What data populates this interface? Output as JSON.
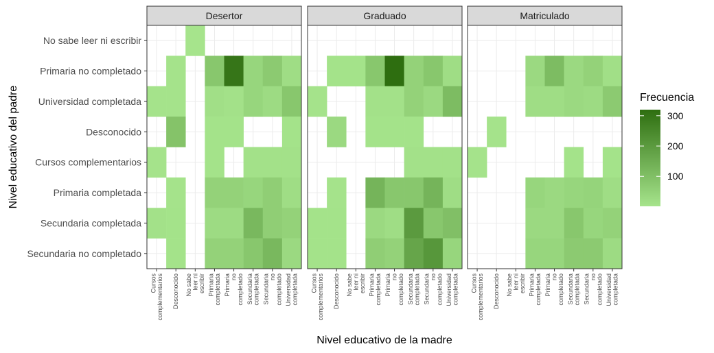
{
  "chart_data": {
    "type": "heatmap",
    "xlabel": "Nivel educativo de la madre",
    "ylabel": "Nivel educativo del padre",
    "facets": [
      "Desertor",
      "Graduado",
      "Matriculado"
    ],
    "x_categories": [
      "Cursos complementarios",
      "Desconocido",
      "No sabe leer ni escribir",
      "Primaria completada",
      "Primaria no completado",
      "Secundaria completada",
      "Secundaria no completado",
      "Universidad completada"
    ],
    "x_tick_labels": [
      "Cursos\ncomplementarios",
      "Desconocido",
      "No sabe\nleer ni\nescribir",
      "Primaria\ncompletada",
      "Primaria\nno\ncompletado",
      "Secundaria\ncompletada",
      "Secundaria\nno\ncompletado",
      "Universidad\ncompletada"
    ],
    "y_categories": [
      "No sabe leer ni escribir",
      "Primaria no completado",
      "Universidad completada",
      "Desconocido",
      "Cursos complementarios",
      "Primaria completada",
      "Secundaria completada",
      "Secundaria no completado"
    ],
    "legend": {
      "title": "Frecuencia",
      "ticks": [
        100,
        200,
        300
      ],
      "min": 1,
      "max": 320,
      "color_low": "#a6e48c",
      "color_high": "#2e6e10"
    },
    "cells": {
      "Desertor": [
        {
          "y": "No sabe leer ni escribir",
          "x": "No sabe leer ni escribir",
          "v": 2
        },
        {
          "y": "Primaria no completado",
          "x": "Desconocido",
          "v": 3
        },
        {
          "y": "Primaria no completado",
          "x": "Primaria completada",
          "v": 80
        },
        {
          "y": "Primaria no completado",
          "x": "Primaria no completado",
          "v": 300
        },
        {
          "y": "Primaria no completado",
          "x": "Secundaria completada",
          "v": 40
        },
        {
          "y": "Primaria no completado",
          "x": "Secundaria no completado",
          "v": 70
        },
        {
          "y": "Primaria no completado",
          "x": "Universidad completada",
          "v": 20
        },
        {
          "y": "Universidad completada",
          "x": "Cursos complementarios",
          "v": 3
        },
        {
          "y": "Universidad completada",
          "x": "Desconocido",
          "v": 3
        },
        {
          "y": "Universidad completada",
          "x": "Primaria completada",
          "v": 15
        },
        {
          "y": "Universidad completada",
          "x": "Primaria no completado",
          "v": 10
        },
        {
          "y": "Universidad completada",
          "x": "Secundaria completada",
          "v": 40
        },
        {
          "y": "Universidad completada",
          "x": "Secundaria no completado",
          "v": 25
        },
        {
          "y": "Universidad completada",
          "x": "Universidad completada",
          "v": 80
        },
        {
          "y": "Desconocido",
          "x": "Desconocido",
          "v": 90
        },
        {
          "y": "Desconocido",
          "x": "Primaria completada",
          "v": 5
        },
        {
          "y": "Desconocido",
          "x": "Primaria no completado",
          "v": 5
        },
        {
          "y": "Desconocido",
          "x": "Universidad completada",
          "v": 5
        },
        {
          "y": "Cursos complementarios",
          "x": "Cursos complementarios",
          "v": 3
        },
        {
          "y": "Cursos complementarios",
          "x": "Primaria completada",
          "v": 5
        },
        {
          "y": "Cursos complementarios",
          "x": "Secundaria completada",
          "v": 10
        },
        {
          "y": "Cursos complementarios",
          "x": "Secundaria no completado",
          "v": 10
        },
        {
          "y": "Cursos complementarios",
          "x": "Universidad completada",
          "v": 10
        },
        {
          "y": "Primaria completada",
          "x": "Desconocido",
          "v": 3
        },
        {
          "y": "Primaria completada",
          "x": "Primaria completada",
          "v": 50
        },
        {
          "y": "Primaria completada",
          "x": "Primaria no completado",
          "v": 50
        },
        {
          "y": "Primaria completada",
          "x": "Secundaria completada",
          "v": 40
        },
        {
          "y": "Primaria completada",
          "x": "Secundaria no completado",
          "v": 60
        },
        {
          "y": "Primaria completada",
          "x": "Universidad completada",
          "v": 20
        },
        {
          "y": "Secundaria completada",
          "x": "Cursos complementarios",
          "v": 10
        },
        {
          "y": "Secundaria completada",
          "x": "Desconocido",
          "v": 5
        },
        {
          "y": "Secundaria completada",
          "x": "Primaria completada",
          "v": 25
        },
        {
          "y": "Secundaria completada",
          "x": "Primaria no completado",
          "v": 25
        },
        {
          "y": "Secundaria completada",
          "x": "Secundaria completada",
          "v": 120
        },
        {
          "y": "Secundaria completada",
          "x": "Secundaria no completado",
          "v": 60
        },
        {
          "y": "Secundaria completada",
          "x": "Universidad completada",
          "v": 50
        },
        {
          "y": "Secundaria no completado",
          "x": "Desconocido",
          "v": 5
        },
        {
          "y": "Secundaria no completado",
          "x": "Primaria completada",
          "v": 50
        },
        {
          "y": "Secundaria no completado",
          "x": "Primaria no completado",
          "v": 50
        },
        {
          "y": "Secundaria no completado",
          "x": "Secundaria completada",
          "v": 80
        },
        {
          "y": "Secundaria no completado",
          "x": "Secundaria no completado",
          "v": 120
        },
        {
          "y": "Secundaria no completado",
          "x": "Universidad completada",
          "v": 30
        }
      ],
      "Graduado": [
        {
          "y": "Primaria no completado",
          "x": "Desconocido",
          "v": 5
        },
        {
          "y": "Primaria no completado",
          "x": "No sabe leer ni escribir",
          "v": 5
        },
        {
          "y": "Primaria no completado",
          "x": "Primaria completada",
          "v": 80
        },
        {
          "y": "Primaria no completado",
          "x": "Primaria no completado",
          "v": 320
        },
        {
          "y": "Primaria no completado",
          "x": "Secundaria completada",
          "v": 50
        },
        {
          "y": "Primaria no completado",
          "x": "Secundaria no completado",
          "v": 80
        },
        {
          "y": "Primaria no completado",
          "x": "Universidad completada",
          "v": 20
        },
        {
          "y": "Universidad completada",
          "x": "Cursos complementarios",
          "v": 3
        },
        {
          "y": "Universidad completada",
          "x": "Primaria completada",
          "v": 10
        },
        {
          "y": "Universidad completada",
          "x": "Primaria no completado",
          "v": 10
        },
        {
          "y": "Universidad completada",
          "x": "Secundaria completada",
          "v": 50
        },
        {
          "y": "Universidad completada",
          "x": "Secundaria no completado",
          "v": 30
        },
        {
          "y": "Universidad completada",
          "x": "Universidad completada",
          "v": 110
        },
        {
          "y": "Desconocido",
          "x": "Desconocido",
          "v": 30
        },
        {
          "y": "Desconocido",
          "x": "Primaria completada",
          "v": 5
        },
        {
          "y": "Desconocido",
          "x": "Primaria no completado",
          "v": 5
        },
        {
          "y": "Desconocido",
          "x": "Secundaria completada",
          "v": 5
        },
        {
          "y": "Cursos complementarios",
          "x": "Secundaria completada",
          "v": 10
        },
        {
          "y": "Cursos complementarios",
          "x": "Secundaria no completado",
          "v": 10
        },
        {
          "y": "Cursos complementarios",
          "x": "Universidad completada",
          "v": 10
        },
        {
          "y": "Primaria completada",
          "x": "Desconocido",
          "v": 3
        },
        {
          "y": "Primaria completada",
          "x": "Primaria completada",
          "v": 130
        },
        {
          "y": "Primaria completada",
          "x": "Primaria no completado",
          "v": 80
        },
        {
          "y": "Primaria completada",
          "x": "Secundaria completada",
          "v": 80
        },
        {
          "y": "Primaria completada",
          "x": "Secundaria no completado",
          "v": 130
        },
        {
          "y": "Primaria completada",
          "x": "Universidad completada",
          "v": 20
        },
        {
          "y": "Secundaria completada",
          "x": "Cursos complementarios",
          "v": 5
        },
        {
          "y": "Secundaria completada",
          "x": "Desconocido",
          "v": 5
        },
        {
          "y": "Secundaria completada",
          "x": "Primaria completada",
          "v": 30
        },
        {
          "y": "Secundaria completada",
          "x": "Primaria no completado",
          "v": 20
        },
        {
          "y": "Secundaria completada",
          "x": "Secundaria completada",
          "v": 200
        },
        {
          "y": "Secundaria completada",
          "x": "Secundaria no completado",
          "v": 80
        },
        {
          "y": "Secundaria completada",
          "x": "Universidad completada",
          "v": 100
        },
        {
          "y": "Secundaria no completado",
          "x": "Cursos complementarios",
          "v": 5
        },
        {
          "y": "Secundaria no completado",
          "x": "Desconocido",
          "v": 5
        },
        {
          "y": "Secundaria no completado",
          "x": "Primaria completada",
          "v": 60
        },
        {
          "y": "Secundaria no completado",
          "x": "Primaria no completado",
          "v": 50
        },
        {
          "y": "Secundaria no completado",
          "x": "Secundaria completada",
          "v": 170
        },
        {
          "y": "Secundaria no completado",
          "x": "Secundaria no completado",
          "v": 210
        },
        {
          "y": "Secundaria no completado",
          "x": "Universidad completada",
          "v": 40
        }
      ],
      "Matriculado": [
        {
          "y": "Primaria no completado",
          "x": "Primaria completada",
          "v": 30
        },
        {
          "y": "Primaria no completado",
          "x": "Primaria no completado",
          "v": 110
        },
        {
          "y": "Primaria no completado",
          "x": "Secundaria completada",
          "v": 30
        },
        {
          "y": "Primaria no completado",
          "x": "Secundaria no completado",
          "v": 50
        },
        {
          "y": "Primaria no completado",
          "x": "Universidad completada",
          "v": 15
        },
        {
          "y": "Universidad completada",
          "x": "Primaria completada",
          "v": 20
        },
        {
          "y": "Universidad completada",
          "x": "Primaria no completado",
          "v": 20
        },
        {
          "y": "Universidad completada",
          "x": "Secundaria completada",
          "v": 30
        },
        {
          "y": "Universidad completada",
          "x": "Secundaria no completado",
          "v": 25
        },
        {
          "y": "Universidad completada",
          "x": "Universidad completada",
          "v": 70
        },
        {
          "y": "Desconocido",
          "x": "Desconocido",
          "v": 3
        },
        {
          "y": "Cursos complementarios",
          "x": "Cursos complementarios",
          "v": 3
        },
        {
          "y": "Cursos complementarios",
          "x": "Secundaria completada",
          "v": 5
        },
        {
          "y": "Cursos complementarios",
          "x": "Universidad completada",
          "v": 5
        },
        {
          "y": "Primaria completada",
          "x": "Primaria completada",
          "v": 40
        },
        {
          "y": "Primaria completada",
          "x": "Primaria no completado",
          "v": 30
        },
        {
          "y": "Primaria completada",
          "x": "Secundaria completada",
          "v": 40
        },
        {
          "y": "Primaria completada",
          "x": "Secundaria no completado",
          "v": 45
        },
        {
          "y": "Primaria completada",
          "x": "Universidad completada",
          "v": 20
        },
        {
          "y": "Secundaria completada",
          "x": "Primaria completada",
          "v": 30
        },
        {
          "y": "Secundaria completada",
          "x": "Primaria no completado",
          "v": 30
        },
        {
          "y": "Secundaria completada",
          "x": "Secundaria completada",
          "v": 80
        },
        {
          "y": "Secundaria completada",
          "x": "Secundaria no completado",
          "v": 40
        },
        {
          "y": "Secundaria completada",
          "x": "Universidad completada",
          "v": 50
        },
        {
          "y": "Secundaria no completado",
          "x": "Primaria completada",
          "v": 40
        },
        {
          "y": "Secundaria no completado",
          "x": "Primaria no completado",
          "v": 40
        },
        {
          "y": "Secundaria no completado",
          "x": "Secundaria completada",
          "v": 70
        },
        {
          "y": "Secundaria no completado",
          "x": "Secundaria no completado",
          "v": 70
        },
        {
          "y": "Secundaria no completado",
          "x": "Universidad completada",
          "v": 25
        }
      ]
    },
    "grid": true,
    "legend_position": "right"
  }
}
